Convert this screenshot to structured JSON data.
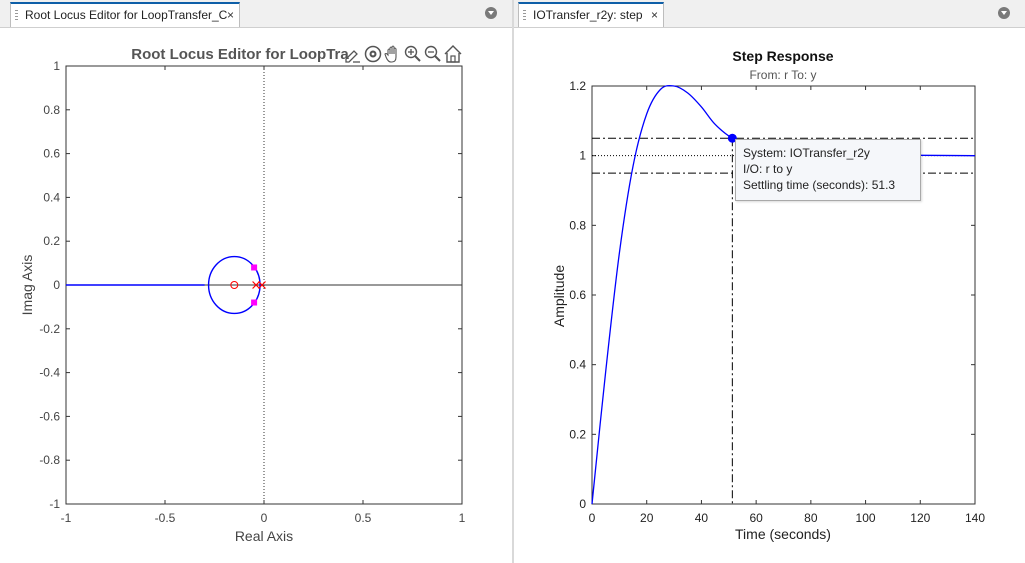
{
  "left_tab": {
    "label": "Root Locus Editor for LoopTransfer_C",
    "close": "×"
  },
  "right_tab": {
    "label": "IOTransfer_r2y: step",
    "close": "×"
  },
  "root_locus": {
    "title": "Root Locus Editor for LoopTra",
    "xlabel": "Real Axis",
    "ylabel": "Imag Axis",
    "xticks": [
      "-1",
      "-0.5",
      "0",
      "0.5",
      "1"
    ],
    "yticks": [
      "1",
      "0.8",
      "0.6",
      "0.4",
      "0.2",
      "0",
      "-0.2",
      "-0.4",
      "-0.6",
      "-0.8",
      "-1"
    ],
    "toolbar_icons": [
      "pencil-icon",
      "data-tips-icon",
      "pan-hand-icon",
      "zoom-in-icon",
      "zoom-out-icon",
      "home-icon"
    ]
  },
  "chart_data": [
    {
      "type": "line",
      "title": "Root Locus Editor for LoopTra",
      "xlabel": "Real Axis",
      "ylabel": "Imag Axis",
      "xlim": [
        -1,
        1
      ],
      "ylim": [
        -1,
        1
      ],
      "grid": false,
      "branches": [
        {
          "x": [
            -1,
            -0.3
          ],
          "y": [
            0,
            0
          ]
        },
        {
          "circle_center": [
            -0.15,
            0
          ],
          "circle_radius": 0.13
        }
      ],
      "poles": [
        [
          -0.04,
          0
        ],
        [
          -0.01,
          0
        ]
      ],
      "zeros": [
        [
          -0.15,
          0
        ]
      ],
      "closed_loop_poles": [
        [
          -0.05,
          0.08
        ],
        [
          -0.05,
          -0.08
        ]
      ],
      "colors": {
        "locus": "#0000ff",
        "pole": "#ff0000",
        "zero": "#ff0000",
        "closed_loop_pole": "#ff00ff"
      }
    },
    {
      "type": "line",
      "title": "Step Response",
      "subtitle": "From: r  To: y",
      "xlabel": "Time (seconds)",
      "ylabel": "Amplitude",
      "xlim": [
        0,
        140
      ],
      "ylim": [
        0,
        1.2
      ],
      "xticks": [
        "0",
        "20",
        "40",
        "60",
        "80",
        "100",
        "120",
        "140"
      ],
      "yticks": [
        "1.2",
        "1",
        "0.8",
        "0.6",
        "0.4",
        "0.2",
        "0"
      ],
      "x": [
        0,
        5,
        10,
        15,
        20,
        25,
        30,
        35,
        40,
        45,
        51.3,
        60,
        70,
        80,
        90,
        100,
        120,
        140
      ],
      "y": [
        0,
        0.38,
        0.72,
        0.97,
        1.12,
        1.19,
        1.2,
        1.18,
        1.14,
        1.09,
        1.05,
        1.02,
        1.01,
        1.005,
        1.003,
        1.002,
        1.001,
        1.0
      ],
      "settling_band": [
        0.95,
        1.05
      ],
      "final_value": 1.0,
      "settling_time": 51.3,
      "colors": {
        "response": "#0000ff",
        "marker": "#0000ff",
        "guides": "#000000"
      }
    }
  ],
  "step_response": {
    "title": "Step Response",
    "subtitle": "From: r  To: y",
    "xlabel": "Time (seconds)",
    "ylabel": "Amplitude",
    "xticks": [
      "0",
      "20",
      "40",
      "60",
      "80",
      "100",
      "120",
      "140"
    ],
    "yticks": [
      "1.2",
      "1",
      "0.8",
      "0.6",
      "0.4",
      "0.2",
      "0"
    ],
    "datatip": {
      "line1": "System:  IOTransfer_r2y",
      "line2": "I/O:  r  to  y",
      "line3": "Settling  time  (seconds):  51.3"
    }
  }
}
